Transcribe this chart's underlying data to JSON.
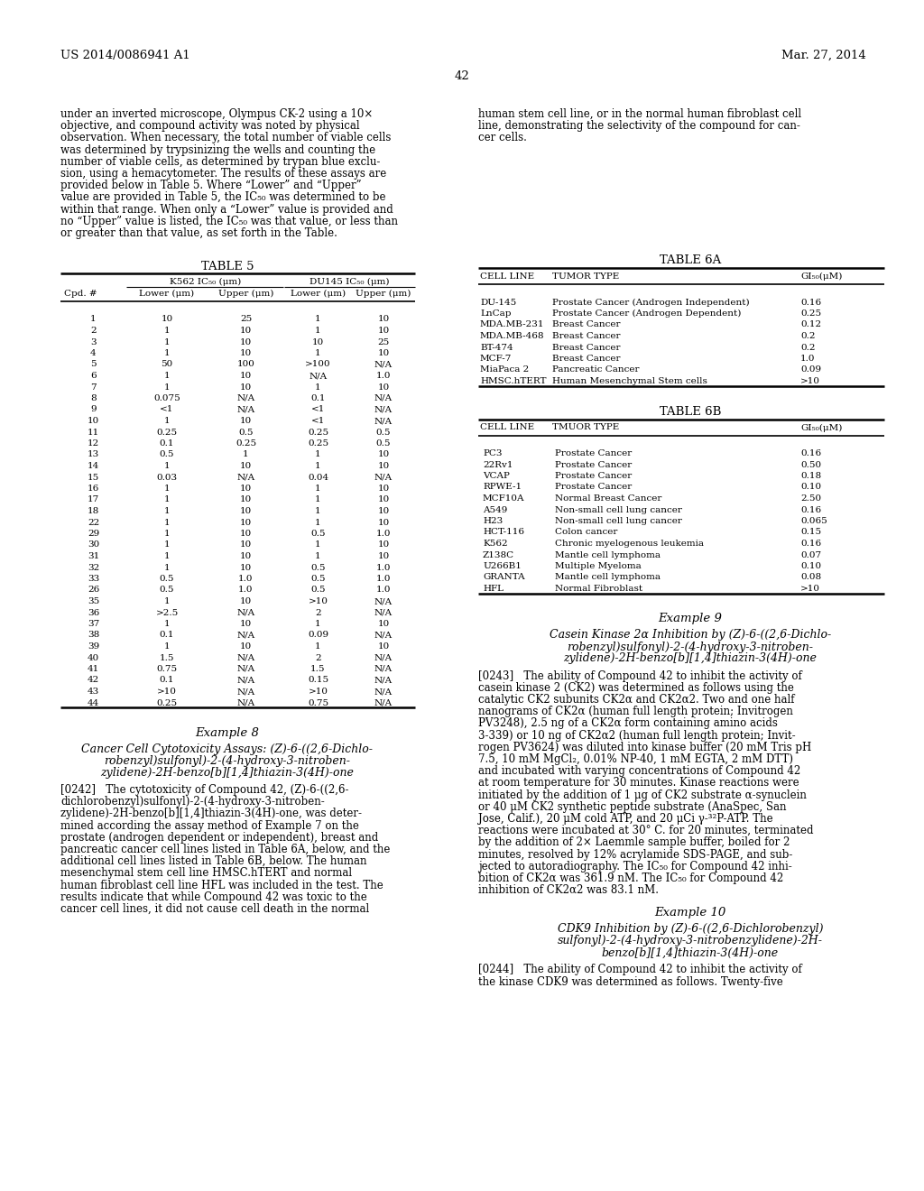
{
  "header_left": "US 2014/0086941 A1",
  "header_right": "Mar. 27, 2014",
  "page_number": "42",
  "bg_color": "#ffffff",
  "left_para_lines": [
    "under an inverted microscope, Olympus CK-2 using a 10×",
    "objective, and compound activity was noted by physical",
    "observation. When necessary, the total number of viable cells",
    "was determined by trypsinizing the wells and counting the",
    "number of viable cells, as determined by trypan blue exclu-",
    "sion, using a hemacytometer. The results of these assays are",
    "provided below in Table 5. Where “Lower” and “Upper”",
    "value are provided in Table 5, the IC₅₀ was determined to be",
    "within that range. When only a “Lower” value is provided and",
    "no “Upper” value is listed, the IC₅₀ was that value, or less than",
    "or greater than that value, as set forth in the Table."
  ],
  "right_para_lines": [
    "human stem cell line, or in the normal human fibroblast cell",
    "line, demonstrating the selectivity of the compound for can-",
    "cer cells."
  ],
  "table5_data": [
    [
      "1",
      "10",
      "25",
      "1",
      "10"
    ],
    [
      "2",
      "1",
      "10",
      "1",
      "10"
    ],
    [
      "3",
      "1",
      "10",
      "10",
      "25"
    ],
    [
      "4",
      "1",
      "10",
      "1",
      "10"
    ],
    [
      "5",
      "50",
      "100",
      ">100",
      "N/A"
    ],
    [
      "6",
      "1",
      "10",
      "N/A",
      "1.0"
    ],
    [
      "7",
      "1",
      "10",
      "1",
      "10"
    ],
    [
      "8",
      "0.075",
      "N/A",
      "0.1",
      "N/A"
    ],
    [
      "9",
      "<1",
      "N/A",
      "<1",
      "N/A"
    ],
    [
      "10",
      "1",
      "10",
      "<1",
      "N/A"
    ],
    [
      "11",
      "0.25",
      "0.5",
      "0.25",
      "0.5"
    ],
    [
      "12",
      "0.1",
      "0.25",
      "0.25",
      "0.5"
    ],
    [
      "13",
      "0.5",
      "1",
      "1",
      "10"
    ],
    [
      "14",
      "1",
      "10",
      "1",
      "10"
    ],
    [
      "15",
      "0.03",
      "N/A",
      "0.04",
      "N/A"
    ],
    [
      "16",
      "1",
      "10",
      "1",
      "10"
    ],
    [
      "17",
      "1",
      "10",
      "1",
      "10"
    ],
    [
      "18",
      "1",
      "10",
      "1",
      "10"
    ],
    [
      "22",
      "1",
      "10",
      "1",
      "10"
    ],
    [
      "29",
      "1",
      "10",
      "0.5",
      "1.0"
    ],
    [
      "30",
      "1",
      "10",
      "1",
      "10"
    ],
    [
      "31",
      "1",
      "10",
      "1",
      "10"
    ],
    [
      "32",
      "1",
      "10",
      "0.5",
      "1.0"
    ],
    [
      "33",
      "0.5",
      "1.0",
      "0.5",
      "1.0"
    ],
    [
      "26",
      "0.5",
      "1.0",
      "0.5",
      "1.0"
    ],
    [
      "35",
      "1",
      "10",
      ">10",
      "N/A"
    ],
    [
      "36",
      ">2.5",
      "N/A",
      "2",
      "N/A"
    ],
    [
      "37",
      "1",
      "10",
      "1",
      "10"
    ],
    [
      "38",
      "0.1",
      "N/A",
      "0.09",
      "N/A"
    ],
    [
      "39",
      "1",
      "10",
      "1",
      "10"
    ],
    [
      "40",
      "1.5",
      "N/A",
      "2",
      "N/A"
    ],
    [
      "41",
      "0.75",
      "N/A",
      "1.5",
      "N/A"
    ],
    [
      "42",
      "0.1",
      "N/A",
      "0.15",
      "N/A"
    ],
    [
      "43",
      ">10",
      "N/A",
      ">10",
      "N/A"
    ],
    [
      "44",
      "0.25",
      "N/A",
      "0.75",
      "N/A"
    ]
  ],
  "table6a_data": [
    [
      "DU-145",
      "Prostate Cancer (Androgen Independent)",
      "0.16"
    ],
    [
      "LnCap",
      "Prostate Cancer (Androgen Dependent)",
      "0.25"
    ],
    [
      "MDA.MB-231",
      "Breast Cancer",
      "0.12"
    ],
    [
      "MDA.MB-468",
      "Breast Cancer",
      "0.2"
    ],
    [
      "BT-474",
      "Breast Cancer",
      "0.2"
    ],
    [
      "MCF-7",
      "Breast Cancer",
      "1.0"
    ],
    [
      "MiaPaca 2",
      "Pancreatic Cancer",
      "0.09"
    ],
    [
      "HMSC.hTERT",
      "Human Mesenchymal Stem cells",
      ">10"
    ]
  ],
  "table6b_data": [
    [
      "PC3",
      "Prostate Cancer",
      "0.16"
    ],
    [
      "22Rv1",
      "Prostate Cancer",
      "0.50"
    ],
    [
      "VCAP",
      "Prostate Cancer",
      "0.18"
    ],
    [
      "RPWE-1",
      "Prostate Cancer",
      "0.10"
    ],
    [
      "MCF10A",
      "Normal Breast Cancer",
      "2.50"
    ],
    [
      "A549",
      "Non-small cell lung cancer",
      "0.16"
    ],
    [
      "H23",
      "Non-small cell lung cancer",
      "0.065"
    ],
    [
      "HCT-116",
      "Colon cancer",
      "0.15"
    ],
    [
      "K562",
      "Chronic myelogenous leukemia",
      "0.16"
    ],
    [
      "Z138C",
      "Mantle cell lymphoma",
      "0.07"
    ],
    [
      "U266B1",
      "Multiple Myeloma",
      "0.10"
    ],
    [
      "GRANTA",
      "Mantle cell lymphoma",
      "0.08"
    ],
    [
      "HFL",
      "Normal Fibroblast",
      ">10"
    ]
  ],
  "ex8_sub_lines": [
    "Cancer Cell Cytotoxicity Assays: (Z)-6-((2,6-Dichlo-",
    "robenzyl)sulfonyl)-2-(4-hydroxy-3-nitroben-",
    "zylidene)-2H-benzo[b][1,4]thiazin-3(4H)-one"
  ],
  "ex8_para_lines": [
    "[0242]   The cytotoxicity of Compound 42, (Z)-6-((2,6-",
    "dichlorobenzyl)sulfonyl)-2-(4-hydroxy-3-nitroben-",
    "zylidene)-2H-benzo[b][1,4]thiazin-3(4H)-one, was deter-",
    "mined according the assay method of Example 7 on the",
    "prostate (androgen dependent or independent), breast and",
    "pancreatic cancer cell lines listed in Table 6A, below, and the",
    "additional cell lines listed in Table 6B, below. The human",
    "mesenchymal stem cell line HMSC.hTERT and normal",
    "human fibroblast cell line HFL was included in the test. The",
    "results indicate that while Compound 42 was toxic to the",
    "cancer cell lines, it did not cause cell death in the normal"
  ],
  "ex9_sub_lines": [
    "Casein Kinase 2α Inhibition by (Z)-6-((2,6-Dichlo-",
    "robenzyl)sulfonyl)-2-(4-hydroxy-3-nitroben-",
    "zylidene)-2H-benzo[b][1,4]thiazin-3(4H)-one"
  ],
  "ex9_para_lines": [
    "[0243]   The ability of Compound 42 to inhibit the activity of",
    "casein kinase 2 (CK2) was determined as follows using the",
    "catalytic CK2 subunits CK2α and CK2α2. Two and one half",
    "nanograms of CK2α (human full length protein; Invitrogen",
    "PV3248), 2.5 ng of a CK2α form containing amino acids",
    "3-339) or 10 ng of CK2α2 (human full length protein; Invit-",
    "rogen PV3624) was diluted into kinase buffer (20 mM Tris pH",
    "7.5, 10 mM MgCl₂, 0.01% NP-40, 1 mM EGTA, 2 mM DTT)",
    "and incubated with varying concentrations of Compound 42",
    "at room temperature for 30 minutes. Kinase reactions were",
    "initiated by the addition of 1 μg of CK2 substrate α-synuclein",
    "or 40 μM CK2 synthetic peptide substrate (AnaSpec, San",
    "Jose, Calif.), 20 μM cold ATP, and 20 μCi γ-³²P-ATP. The",
    "reactions were incubated at 30° C. for 20 minutes, terminated",
    "by the addition of 2× Laemmle sample buffer, boiled for 2",
    "minutes, resolved by 12% acrylamide SDS-PAGE, and sub-",
    "jected to autoradiography. The IC₅₀ for Compound 42 inhi-",
    "bition of CK2α was 361.9 nM. The IC₅₀ for Compound 42",
    "inhibition of CK2α2 was 83.1 nM."
  ],
  "ex10_sub_lines": [
    "CDK9 Inhibition by (Z)-6-((2,6-Dichlorobenzyl)",
    "sulfonyl)-2-(4-hydroxy-3-nitrobenzylidene)-2H-",
    "benzo[b][1,4]thiazin-3(4H)-one"
  ],
  "ex10_para_lines": [
    "[0244]   The ability of Compound 42 to inhibit the activity of",
    "the kinase CDK9 was determined as follows. Twenty-five"
  ]
}
